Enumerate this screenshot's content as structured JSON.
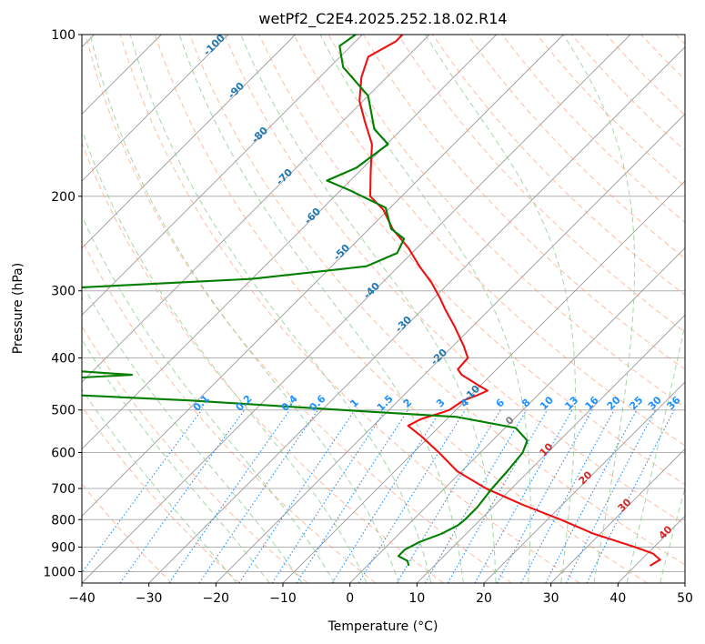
{
  "chart_data": {
    "type": "skew-t",
    "title": "wetPf2_C2E4.2025.252.18.02.R14",
    "xlabel": "Temperature (°C)",
    "ylabel": "Pressure (hPa)",
    "xlim": [
      -40,
      50
    ],
    "ylim": [
      1050,
      100
    ],
    "y_scale": "log",
    "x_ticks": [
      "−40",
      "−30",
      "−20",
      "−10",
      "0",
      "10",
      "20",
      "30",
      "40",
      "50"
    ],
    "y_ticks": [
      100,
      200,
      300,
      400,
      500,
      600,
      700,
      800,
      900,
      1000
    ],
    "grid": true,
    "colors": {
      "temperature": "#ee1111",
      "dewpoint": "#007f00",
      "isotherm": "#9a9a9a",
      "dry_adiabat": "#ffa07a",
      "moist_adiabat": "#8fcc8f",
      "mixing_ratio": "#1e90ff",
      "isotherm_label": "#1f77b4",
      "dry_adiabat_label": "#d62728",
      "zero_label": "#7f7f7f"
    },
    "series": [
      {
        "name": "Temperature",
        "points": [
          [
            42.2,
            975
          ],
          [
            42.8,
            950
          ],
          [
            40.8,
            925
          ],
          [
            37.2,
            900
          ],
          [
            29.0,
            850
          ],
          [
            22.0,
            800
          ],
          [
            14.0,
            750
          ],
          [
            6.2,
            700
          ],
          [
            -0.7,
            650
          ],
          [
            -6.2,
            600
          ],
          [
            -11.2,
            560
          ],
          [
            -14.8,
            535
          ],
          [
            -13.9,
            520
          ],
          [
            -11.6,
            505
          ],
          [
            -11.0,
            500
          ],
          [
            -10.3,
            480
          ],
          [
            -9.1,
            470
          ],
          [
            -8.2,
            460
          ],
          [
            -10.3,
            450
          ],
          [
            -12.3,
            440
          ],
          [
            -14.4,
            430
          ],
          [
            -15.8,
            420
          ],
          [
            -15.9,
            410
          ],
          [
            -16.0,
            400
          ],
          [
            -18.4,
            380
          ],
          [
            -22.6,
            350
          ],
          [
            -26.6,
            325
          ],
          [
            -29.0,
            310
          ],
          [
            -32.6,
            290
          ],
          [
            -36.9,
            270
          ],
          [
            -41.2,
            250
          ],
          [
            -46.5,
            230
          ],
          [
            -50.7,
            212
          ],
          [
            -54.7,
            200
          ],
          [
            -58.3,
            180
          ],
          [
            -62.2,
            160
          ],
          [
            -66.7,
            145
          ],
          [
            -70.5,
            133
          ],
          [
            -73.8,
            120
          ],
          [
            -75.8,
            110
          ],
          [
            -74.0,
            103
          ],
          [
            -74.0,
            100
          ]
        ]
      },
      {
        "name": "Dewpoint",
        "points": [
          [
            6.2,
            975
          ],
          [
            5.3,
            955
          ],
          [
            3.2,
            935
          ],
          [
            3.2,
            910
          ],
          [
            4.3,
            880
          ],
          [
            6.3,
            850
          ],
          [
            7.5,
            820
          ],
          [
            7.7,
            800
          ],
          [
            7.7,
            760
          ],
          [
            7.1,
            700
          ],
          [
            6.8,
            650
          ],
          [
            6.3,
            600
          ],
          [
            5.2,
            570
          ],
          [
            1.6,
            540
          ],
          [
            -8.9,
            515
          ],
          [
            -27.1,
            500
          ],
          [
            -51.0,
            480
          ],
          [
            -80.7,
            462
          ],
          [
            -92.2,
            452
          ],
          [
            -84.9,
            445
          ],
          [
            -63.6,
            430
          ],
          [
            -76.5,
            420
          ],
          [
            -94.5,
            410
          ],
          [
            -103.0,
            400
          ],
          [
            -101.3,
            380
          ],
          [
            -93.5,
            340
          ],
          [
            -86.3,
            320
          ],
          [
            -82.5,
            310
          ],
          [
            -86.9,
            305
          ],
          [
            -85.0,
            296
          ],
          [
            -60.0,
            285
          ],
          [
            -44.8,
            270
          ],
          [
            -42.2,
            255
          ],
          [
            -43.3,
            240
          ],
          [
            -46.7,
            230
          ],
          [
            -50.7,
            210
          ],
          [
            -58.6,
            195
          ],
          [
            -63.5,
            187
          ],
          [
            -61.0,
            177
          ],
          [
            -59.8,
            160
          ],
          [
            -64.1,
            150
          ],
          [
            -70.0,
            130
          ],
          [
            -78.0,
            115
          ],
          [
            -81.7,
            105
          ],
          [
            -81.0,
            100
          ]
        ]
      }
    ],
    "isotherm_labels": [
      "-100",
      "-90",
      "-80",
      "-70",
      "-60",
      "-50",
      "-40",
      "-30",
      "-20",
      "-10"
    ],
    "zero_label": "0",
    "dry_adiabat_labels": [
      "10",
      "20",
      "30",
      "40"
    ],
    "mixing_ratio_labels": [
      "0.1",
      "0.2",
      "0.4",
      "0.6",
      "1",
      "1.5",
      "2",
      "3",
      "4",
      "6",
      "8",
      "10",
      "13",
      "16",
      "20",
      "25",
      "30",
      "36"
    ]
  }
}
